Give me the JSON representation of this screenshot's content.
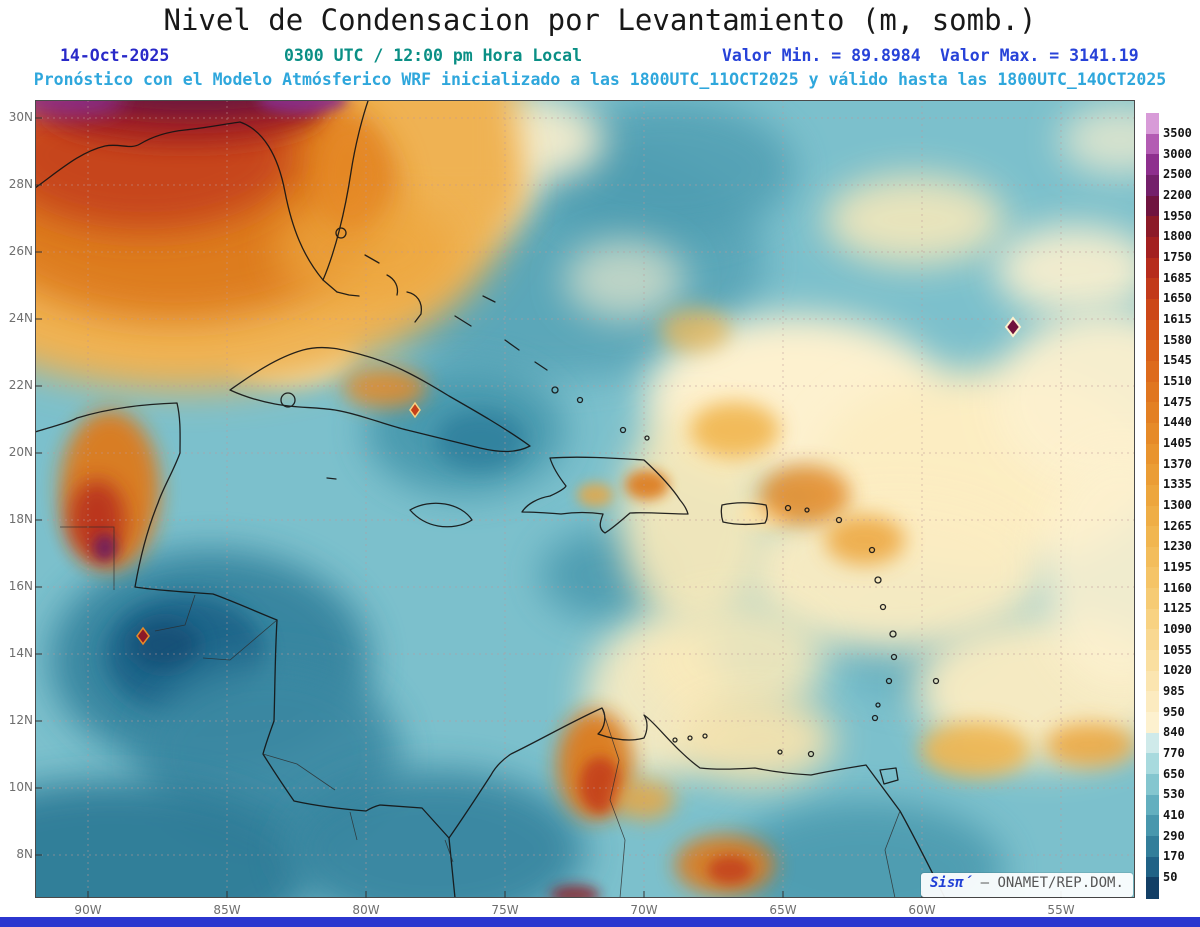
{
  "title": "Nivel de Condensacion por Levantamiento (m, somb.)",
  "header": {
    "date": "14-Oct-2025",
    "time": "0300 UTC / 12:00 pm Hora Local",
    "valor_min": "Valor Min. = 89.8984",
    "valor_max": "Valor Max. = 3141.19",
    "forecast": "Pronóstico con el Modelo Atmósferico WRF inicializado a las 1800UTC_11OCT2025 y válido hasta las  1800UTC_14OCT2025"
  },
  "map": {
    "lat_labels": [
      "30N",
      "28N",
      "26N",
      "24N",
      "22N",
      "20N",
      "18N",
      "16N",
      "14N",
      "12N",
      "10N",
      "8N"
    ],
    "lon_labels": [
      "90W",
      "85W",
      "80W",
      "75W",
      "70W",
      "65W",
      "60W",
      "55W"
    ]
  },
  "colorbar": {
    "units": "m",
    "labels": [
      "3500",
      "3000",
      "2500",
      "2200",
      "1950",
      "1800",
      "1750",
      "1685",
      "1650",
      "1615",
      "1580",
      "1545",
      "1510",
      "1475",
      "1440",
      "1405",
      "1370",
      "1335",
      "1300",
      "1265",
      "1230",
      "1195",
      "1160",
      "1125",
      "1090",
      "1055",
      "1020",
      "985",
      "950",
      "840",
      "770",
      "650",
      "530",
      "410",
      "290",
      "170",
      "50"
    ],
    "colors": [
      "#d89bd8",
      "#b35cb3",
      "#8e2f8e",
      "#74206b",
      "#701440",
      "#8c1a28",
      "#a32020",
      "#b62c1c",
      "#c23a1a",
      "#cc4718",
      "#d45418",
      "#d96019",
      "#dd6b1c",
      "#e0761f",
      "#e38023",
      "#e68a28",
      "#e9942e",
      "#eb9d35",
      "#eda63d",
      "#efae46",
      "#f1b650",
      "#f3bd5b",
      "#f5c467",
      "#f6cb74",
      "#f8d282",
      "#f9d891",
      "#fadfa0",
      "#fbe5b0",
      "#fcebc0",
      "#fdf1cf",
      "#cfeaea",
      "#a8dade",
      "#84c6cf",
      "#63afbf",
      "#4897ad",
      "#327e9a",
      "#206286",
      "#123f66"
    ]
  },
  "watermark": {
    "brand": "Sisπ́",
    "credit": "– ONAMET/REP.DOM."
  },
  "accent_colors": {
    "date_blue": "#2929c8",
    "time_teal": "#0a8f85",
    "forecast_cyan": "#2fa7dc",
    "bottom_bar_blue": "#2b36cf"
  }
}
